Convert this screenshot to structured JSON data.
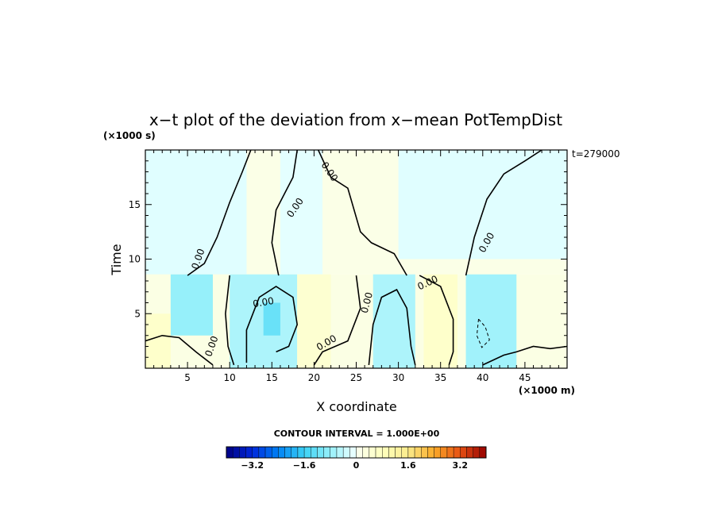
{
  "chart_data": {
    "type": "heatmap",
    "title": "x−t plot of the deviation from x−mean PotTempDist",
    "xlabel": "X coordinate",
    "ylabel": "Time",
    "x_unit": "(×1000 m)",
    "y_unit": "(×1000 s)",
    "time_stamp": "t=279000",
    "xlim": [
      0,
      50
    ],
    "ylim": [
      0,
      20
    ],
    "x_ticks": [
      5,
      10,
      15,
      20,
      25,
      30,
      35,
      40,
      45
    ],
    "x_tick_labels": [
      "5",
      "10",
      "15",
      "20",
      "25",
      "30",
      "35",
      "40",
      "45"
    ],
    "y_ticks": [
      5,
      10,
      15
    ],
    "y_tick_labels": [
      "5",
      "10",
      "15"
    ],
    "contour_interval_label": "CONTOUR INTERVAL = 1.000E+00",
    "contour_label": "0.00",
    "colorbar": {
      "min": -4,
      "max": 4,
      "step": 0.2,
      "tick_values": [
        -3.2,
        -1.6,
        0,
        1.6,
        3.2
      ],
      "tick_labels": [
        "−3.2",
        "−1.6",
        "0",
        "1.6",
        "3.2"
      ]
    },
    "zero_contours": [
      [
        [
          0,
          2.5
        ],
        [
          2.0,
          3.0
        ],
        [
          4.0,
          2.8
        ],
        [
          6.0,
          1.5
        ],
        [
          8.0,
          0.3
        ]
      ],
      [
        [
          5.0,
          8.5
        ],
        [
          7.0,
          9.6
        ],
        [
          8.5,
          12.0
        ],
        [
          10.0,
          15.2
        ],
        [
          11.5,
          18.0
        ],
        [
          12.5,
          20.0
        ]
      ],
      [
        [
          18.0,
          20.0
        ],
        [
          17.5,
          17.5
        ],
        [
          15.5,
          14.5
        ],
        [
          15.0,
          11.5
        ],
        [
          15.8,
          8.5
        ]
      ],
      [
        [
          10.0,
          8.5
        ],
        [
          9.5,
          5.0
        ],
        [
          9.8,
          2.0
        ],
        [
          10.5,
          0.3
        ]
      ],
      [
        [
          12.0,
          0.5
        ],
        [
          12.0,
          3.5
        ],
        [
          13.5,
          6.5
        ],
        [
          15.5,
          7.5
        ],
        [
          17.5,
          6.5
        ],
        [
          18.0,
          4.0
        ],
        [
          17.0,
          2.0
        ],
        [
          15.5,
          1.5
        ]
      ],
      [
        [
          20.5,
          20.0
        ],
        [
          22.0,
          17.5
        ],
        [
          24.0,
          16.5
        ],
        [
          25.5,
          12.5
        ],
        [
          26.8,
          11.5
        ],
        [
          29.5,
          10.5
        ],
        [
          31.0,
          8.5
        ]
      ],
      [
        [
          20.0,
          0.3
        ],
        [
          21.0,
          1.5
        ],
        [
          24.0,
          2.5
        ],
        [
          25.5,
          5.5
        ],
        [
          25.0,
          8.5
        ]
      ],
      [
        [
          26.5,
          0.3
        ],
        [
          27.0,
          4.0
        ],
        [
          28.0,
          6.5
        ],
        [
          29.8,
          7.2
        ],
        [
          31.0,
          5.5
        ],
        [
          31.5,
          2.0
        ],
        [
          32.0,
          0.3
        ]
      ],
      [
        [
          32.5,
          8.5
        ],
        [
          35.0,
          7.5
        ],
        [
          36.5,
          4.5
        ],
        [
          36.5,
          1.5
        ],
        [
          36.0,
          0.3
        ]
      ],
      [
        [
          38.0,
          8.5
        ],
        [
          39.0,
          12.0
        ],
        [
          40.5,
          15.5
        ],
        [
          42.5,
          17.8
        ],
        [
          45.0,
          19.0
        ],
        [
          47.0,
          20.0
        ]
      ],
      [
        [
          40.0,
          0.3
        ],
        [
          42.5,
          1.2
        ],
        [
          44.0,
          1.5
        ],
        [
          46.0,
          2.0
        ],
        [
          48.0,
          1.8
        ],
        [
          50.0,
          2.0
        ]
      ]
    ],
    "dashed_contours": [
      [
        [
          39.5,
          4.5
        ],
        [
          40.3,
          3.8
        ],
        [
          40.8,
          2.6
        ],
        [
          39.9,
          1.9
        ],
        [
          39.3,
          3.0
        ],
        [
          39.5,
          4.5
        ]
      ]
    ],
    "contour_labels": [
      {
        "x": 6.3,
        "y": 10.0,
        "angle": -70
      },
      {
        "x": 17.8,
        "y": 14.7,
        "angle": -55
      },
      {
        "x": 21.8,
        "y": 18.0,
        "angle": 55
      },
      {
        "x": 40.5,
        "y": 11.5,
        "angle": -60
      },
      {
        "x": 14.0,
        "y": 6.0,
        "angle": -10
      },
      {
        "x": 7.9,
        "y": 2.0,
        "angle": -70
      },
      {
        "x": 21.5,
        "y": 2.3,
        "angle": -30
      },
      {
        "x": 26.3,
        "y": 6.0,
        "angle": -75
      },
      {
        "x": 33.5,
        "y": 7.8,
        "angle": -25
      }
    ],
    "regions": [
      {
        "x": [
          0,
          50
        ],
        "y": [
          8.6,
          20
        ],
        "value": 0.15
      },
      {
        "x": [
          0,
          12
        ],
        "y": [
          8.6,
          20
        ],
        "value": -0.15
      },
      {
        "x": [
          16,
          21
        ],
        "y": [
          8.6,
          20
        ],
        "value": -0.12
      },
      {
        "x": [
          30,
          50
        ],
        "y": [
          10,
          20
        ],
        "value": -0.15
      },
      {
        "x": [
          0,
          50
        ],
        "y": [
          0,
          8.6
        ],
        "value": 0.2
      },
      {
        "x": [
          3,
          8
        ],
        "y": [
          3,
          8.6
        ],
        "value": -0.8
      },
      {
        "x": [
          10,
          18
        ],
        "y": [
          0,
          8.6
        ],
        "value": -0.6
      },
      {
        "x": [
          14,
          16
        ],
        "y": [
          3,
          6
        ],
        "value": -1.2
      },
      {
        "x": [
          18,
          22
        ],
        "y": [
          0,
          8.6
        ],
        "value": 0.5
      },
      {
        "x": [
          27,
          32
        ],
        "y": [
          0,
          8.6
        ],
        "value": -0.6
      },
      {
        "x": [
          33,
          37
        ],
        "y": [
          0,
          8.6
        ],
        "value": 0.6
      },
      {
        "x": [
          38,
          44
        ],
        "y": [
          0,
          8.6
        ],
        "value": -0.7
      },
      {
        "x": [
          0,
          3
        ],
        "y": [
          0,
          5
        ],
        "value": 0.6
      }
    ]
  }
}
